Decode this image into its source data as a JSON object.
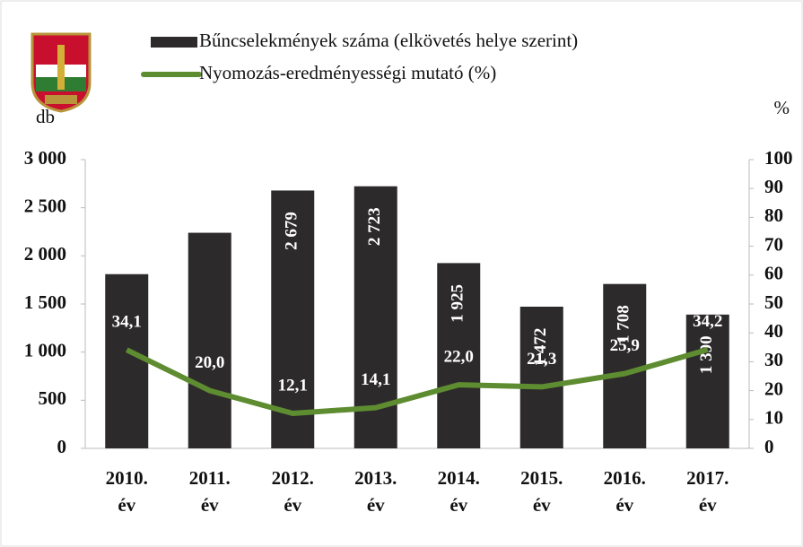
{
  "chart_data": {
    "type": "bar",
    "legend_position": "top",
    "y_label": "db",
    "y2_label": "%",
    "categories": [
      "2010. év",
      "2011. év",
      "2012. év",
      "2013. év",
      "2014. év",
      "2015. év",
      "2016. év",
      "2017. év"
    ],
    "series": [
      {
        "name": "Bűncselekmények száma (elkövetés helye szerint)",
        "type": "bar",
        "color": "#2d2a2b",
        "values": [
          1810,
          2240,
          2679,
          2723,
          1925,
          1472,
          1708,
          1390
        ],
        "value_labels": [
          null,
          null,
          "2 679",
          "2 723",
          "1 925",
          "1 472",
          "1 708",
          "1 390"
        ]
      },
      {
        "name": "Nyomozás-eredményességi mutató (%)",
        "type": "line",
        "axis": "y2",
        "color": "#5e8c31",
        "values": [
          34.1,
          20.0,
          12.1,
          14.1,
          22.0,
          21.3,
          25.9,
          34.2
        ],
        "value_labels": [
          "34,1",
          "20,0",
          "12,1",
          "14,1",
          "22,0",
          "21,3",
          "25,9",
          "34,2"
        ]
      }
    ],
    "ylim": [
      0,
      3000
    ],
    "yticks": [
      0,
      500,
      {
        "value": 1000,
        "label": "1 000"
      },
      {
        "value": 1500,
        "label": "1 500"
      },
      {
        "value": 2000,
        "label": "2 000"
      },
      {
        "value": 2500,
        "label": "2 500"
      },
      {
        "value": 3000,
        "label": "3 000"
      }
    ],
    "y2lim": [
      0,
      100
    ],
    "y2ticks": [
      0,
      10,
      20,
      30,
      40,
      50,
      60,
      70,
      80,
      90,
      100
    ],
    "grid": false
  }
}
